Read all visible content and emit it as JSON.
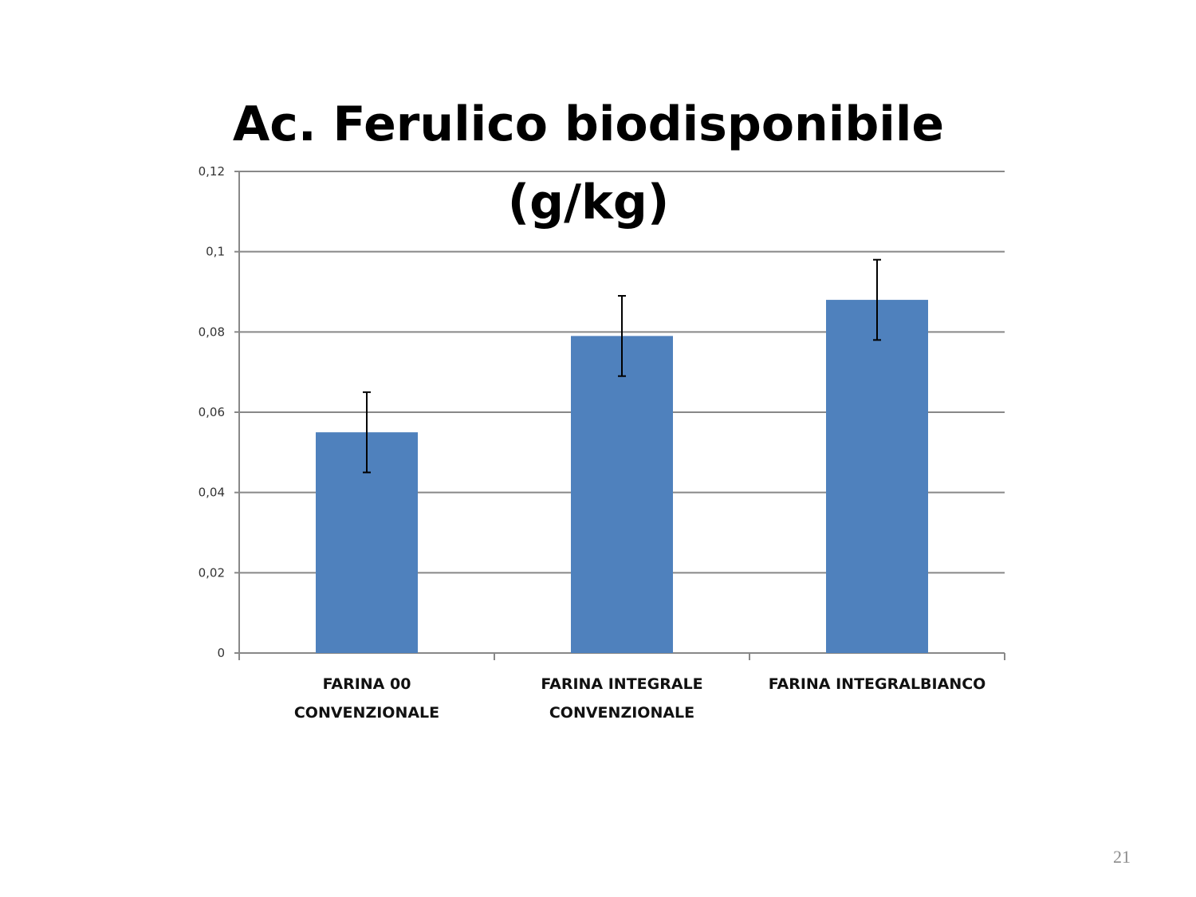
{
  "chart_data": {
    "type": "bar",
    "title_lines": [
      "Ac. Ferulico biodisponibile",
      "(g/kg)"
    ],
    "categories": [
      [
        "FARINA 00",
        "CONVENZIONALE"
      ],
      [
        "FARINA INTEGRALE",
        "CONVENZIONALE"
      ],
      [
        "FARINA INTEGRALBIANCO"
      ]
    ],
    "values": [
      0.055,
      0.079,
      0.088
    ],
    "error": [
      0.01,
      0.01,
      0.01
    ],
    "yticks": [
      "0",
      "0,02",
      "0,04",
      "0,06",
      "0,08",
      "0,1",
      "0,12"
    ],
    "ylim": [
      0,
      0.12
    ],
    "grid": true,
    "legend": "none",
    "bar_color": "#4f81bd",
    "grid_color": "#888888"
  },
  "page": {
    "number": "21"
  }
}
